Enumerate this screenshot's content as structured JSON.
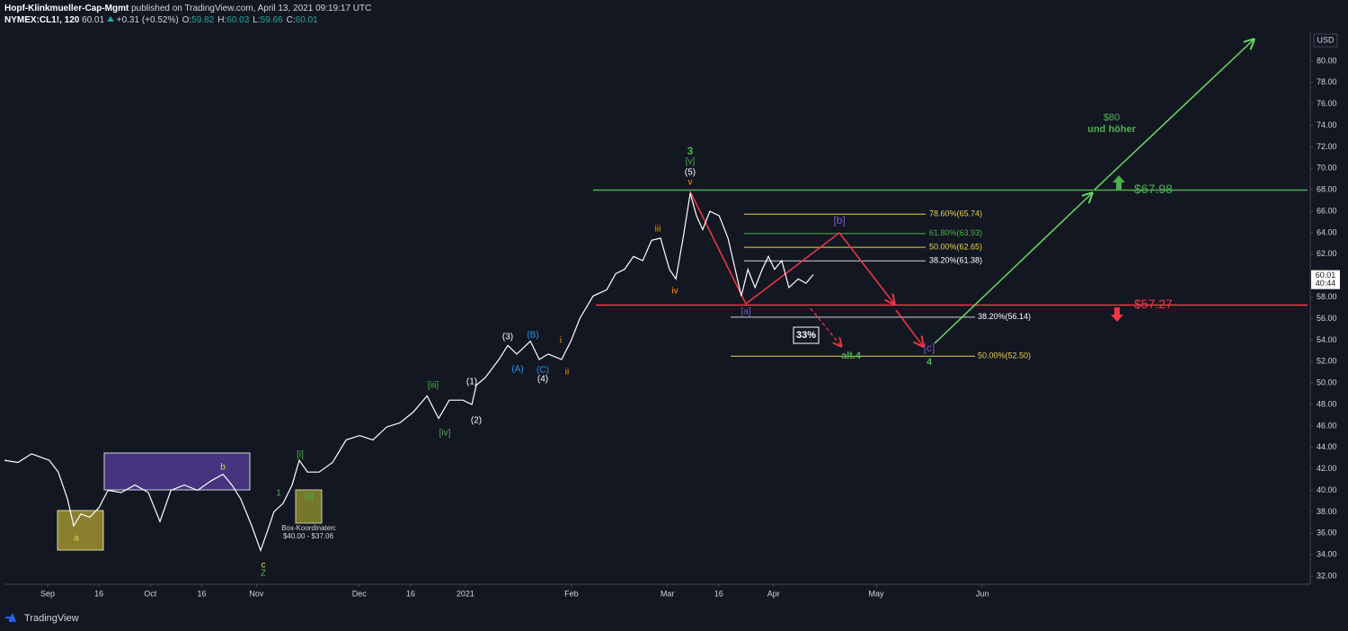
{
  "header": {
    "publisher": "Hopf-Klinkmueller-Cap-Mgmt",
    "published": "published on TradingView.com, April 13, 2021 09:19:17 UTC",
    "symbol": "NYMEX:CL1!, 120",
    "price": "60.01",
    "change": "+0.31 (+0.52%)",
    "ohlc": [
      {
        "label": "O:",
        "value": "59.82"
      },
      {
        "label": "H:",
        "value": "60.03"
      },
      {
        "label": "L:",
        "value": "59.66"
      },
      {
        "label": "C:",
        "value": "60.01"
      }
    ]
  },
  "chart_data": {
    "type": "line",
    "color": "#ffffff",
    "currency": "USD",
    "last_price": 60.01,
    "countdown": "40:44",
    "x": [
      -12.6,
      -8.7,
      -4.7,
      0.5,
      3.1,
      5.8,
      7.6,
      9.7,
      12.3,
      15,
      17.6,
      21.5,
      25.5,
      29.4,
      32.8,
      36,
      39.9,
      43.8,
      47.8,
      51.2,
      53.8,
      56.4,
      59.6,
      62.2,
      64.3,
      66.1,
      68.8,
      71.4,
      73.5,
      75.9,
      79.3,
      83.2,
      87.2,
      91.1,
      95,
      99,
      102.9,
      106.8,
      110.8,
      114.2,
      117.3,
      121.3,
      123.9,
      125.2,
      127.8,
      131.8,
      134.4,
      137,
      141,
      143.6,
      146.2,
      150.1,
      152.8,
      155.4,
      159.3,
      163.3,
      165.9,
      168.5,
      171.1,
      173.8,
      176.4,
      179,
      181.6,
      183.5,
      185.6,
      187.7,
      189.5,
      191.3,
      193.4,
      196.1,
      198.7,
      200.8,
      202.6,
      204.5,
      206.6,
      208.7,
      210.5,
      212.3,
      214.4,
      216.5,
      219.2,
      221.5,
      223.6
    ],
    "values": [
      42.8,
      42.6,
      43.4,
      42.8,
      41.7,
      39.2,
      36.7,
      37.8,
      37.5,
      38.4,
      40.0,
      39.8,
      40.5,
      39.8,
      37.1,
      40.0,
      40.5,
      40.0,
      40.9,
      41.5,
      40.5,
      39.2,
      36.7,
      34.4,
      36.3,
      38.0,
      38.8,
      40.5,
      42.8,
      41.7,
      41.7,
      42.6,
      44.7,
      45.1,
      44.7,
      45.9,
      46.3,
      47.3,
      48.8,
      46.7,
      48.4,
      48.4,
      48.0,
      49.8,
      50.5,
      52.2,
      53.5,
      52.7,
      53.9,
      52.2,
      52.7,
      52.2,
      53.9,
      56.0,
      58.1,
      58.7,
      60.2,
      60.6,
      61.8,
      61.4,
      63.3,
      63.5,
      60.6,
      59.7,
      63.5,
      67.7,
      65.6,
      64.3,
      66.0,
      65.6,
      63.5,
      60.6,
      58.1,
      60.6,
      58.9,
      60.6,
      61.8,
      60.6,
      61.4,
      58.9,
      59.7,
      59.3,
      60.1
    ],
    "xlim": [
      -12.6,
      368.5
    ],
    "xticks": [
      {
        "value": 0,
        "label": "Sep"
      },
      {
        "value": 15,
        "label": "16"
      },
      {
        "value": 30,
        "label": "Oct"
      },
      {
        "value": 45,
        "label": "16"
      },
      {
        "value": 61,
        "label": "Nov"
      },
      {
        "value": 91,
        "label": "Dec"
      },
      {
        "value": 106,
        "label": "16"
      },
      {
        "value": 122,
        "label": "2021"
      },
      {
        "value": 153,
        "label": "Feb"
      },
      {
        "value": 181,
        "label": "Mar"
      },
      {
        "value": 196,
        "label": "16"
      },
      {
        "value": 212,
        "label": "Apr"
      },
      {
        "value": 242,
        "label": "May"
      },
      {
        "value": 273,
        "label": "Jun"
      }
    ],
    "ylim": [
      31.25,
      82.76
    ],
    "yticks": [
      {
        "value": 32,
        "label": "32.00"
      },
      {
        "value": 34,
        "label": "34.00"
      },
      {
        "value": 36,
        "label": "36.00"
      },
      {
        "value": 38,
        "label": "38.00"
      },
      {
        "value": 40,
        "label": "40.00"
      },
      {
        "value": 42,
        "label": "42.00"
      },
      {
        "value": 44,
        "label": "44.00"
      },
      {
        "value": 46,
        "label": "46.00"
      },
      {
        "value": 48,
        "label": "48.00"
      },
      {
        "value": 50,
        "label": "50.00"
      },
      {
        "value": 52,
        "label": "52.00"
      },
      {
        "value": 54,
        "label": "54.00"
      },
      {
        "value": 56,
        "label": "56.00"
      },
      {
        "value": 58,
        "label": "58.00"
      },
      {
        "value": 60,
        "label": "60.00"
      },
      {
        "value": 62,
        "label": "62.00"
      },
      {
        "value": 64,
        "label": "64.00"
      },
      {
        "value": 66,
        "label": "66.00"
      },
      {
        "value": 68,
        "label": "68.00"
      },
      {
        "value": 70,
        "label": "70.00"
      },
      {
        "value": 72,
        "label": "72.00"
      },
      {
        "value": 74,
        "label": "74.00"
      },
      {
        "value": 76,
        "label": "76.00"
      },
      {
        "value": 78,
        "label": "78.00"
      },
      {
        "value": 80,
        "label": "80.00"
      }
    ],
    "levels": [
      {
        "value": 67.98,
        "label": "$67.98",
        "color": "#4caf50"
      },
      {
        "value": 57.27,
        "label": "$57.27",
        "color": "#f23645"
      },
      {
        "value": 65.74,
        "label": "78.60%(65.74)",
        "color": "#e8d44d"
      },
      {
        "value": 63.93,
        "label": "61.80%(63.93)",
        "color": "#4caf50"
      },
      {
        "value": 62.65,
        "label": "50.00%(62.65)",
        "color": "#e8d44d"
      },
      {
        "value": 61.38,
        "label": "38.20%(61.38)",
        "color": "#d1d4dc"
      },
      {
        "value": 56.14,
        "label": "38.20%(56.14)",
        "color": "#d1d4dc"
      },
      {
        "value": 52.5,
        "label": "50.00%(52.50)",
        "color": "#e8d44d"
      }
    ],
    "annotations": [
      {
        "text": "a",
        "color": "#e8d44d"
      },
      {
        "text": "b",
        "color": "#e8d44d"
      },
      {
        "text": "c",
        "color": "#e8d44d"
      },
      {
        "text": "Z",
        "color": "#4caf50"
      },
      {
        "text": "1",
        "color": "#4caf50"
      },
      {
        "text": "[i]",
        "color": "#4caf50"
      },
      {
        "text": "[ii]",
        "color": "#4caf50"
      },
      {
        "text": "[iii]",
        "color": "#4caf50"
      },
      {
        "text": "[iv]",
        "color": "#4caf50"
      },
      {
        "text": "(1)",
        "color": "#ffffff"
      },
      {
        "text": "(2)",
        "color": "#ffffff"
      },
      {
        "text": "(3)",
        "color": "#ffffff"
      },
      {
        "text": "(4)",
        "color": "#ffffff"
      },
      {
        "text": "(A)",
        "color": "#2196f3"
      },
      {
        "text": "(B)",
        "color": "#2196f3"
      },
      {
        "text": "(C)",
        "color": "#2196f3"
      },
      {
        "text": "i",
        "color": "#ff9800"
      },
      {
        "text": "ii",
        "color": "#ff9800"
      },
      {
        "text": "iii",
        "color": "#ff9800"
      },
      {
        "text": "iv",
        "color": "#ff9800"
      },
      {
        "text": "v",
        "color": "#ff9800"
      },
      {
        "text": "(5)",
        "color": "#ffffff"
      },
      {
        "text": "[v]",
        "color": "#4caf50"
      },
      {
        "text": "3",
        "color": "#4caf50"
      },
      {
        "text": "[a]",
        "color": "#7e57c2"
      },
      {
        "text": "[b]",
        "color": "#7e57c2"
      },
      {
        "text": "[c]",
        "color": "#7e57c2"
      },
      {
        "text": "4",
        "color": "#4caf50"
      },
      {
        "text": "alt.4",
        "color": "#4caf50"
      },
      {
        "text": "33%",
        "color": "#ffffff"
      },
      {
        "text": "$80",
        "color": "#4caf50"
      },
      {
        "text": "und höher",
        "color": "#4caf50"
      },
      {
        "text": "Box-Koordinaten:",
        "color": "#d1d4dc"
      },
      {
        "text": "$40.00 - $37.06",
        "color": "#d1d4dc"
      }
    ]
  },
  "branding": "TradingView"
}
